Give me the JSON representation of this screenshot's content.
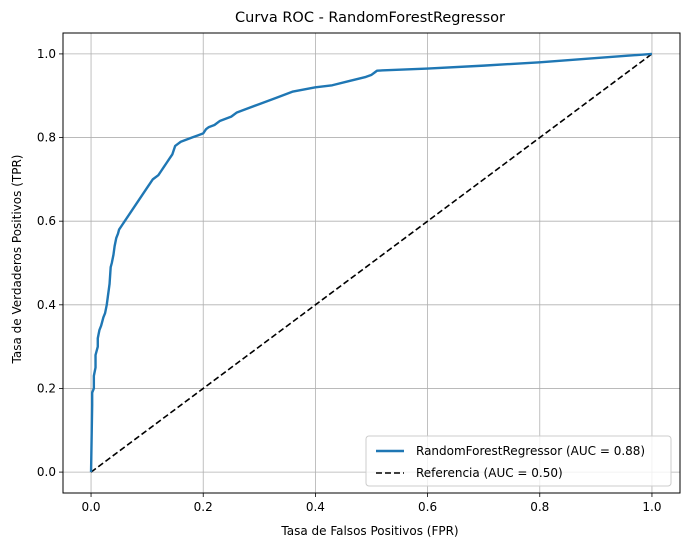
{
  "chart_data": {
    "type": "line",
    "title": "Curva ROC - RandomForestRegressor",
    "xlabel": "Tasa de Falsos Positivos (FPR)",
    "ylabel": "Tasa de Verdaderos Positivos (TPR)",
    "xlim": [
      -0.05,
      1.05
    ],
    "ylim": [
      -0.05,
      1.05
    ],
    "x_ticks": [
      "0.0",
      "0.2",
      "0.4",
      "0.6",
      "0.8",
      "1.0"
    ],
    "y_ticks": [
      "0.0",
      "0.2",
      "0.4",
      "0.6",
      "0.8",
      "1.0"
    ],
    "grid": true,
    "legend_position": "lower-right",
    "series": [
      {
        "name": "RandomForestRegressor (AUC = 0.88)",
        "color": "#1f77b4",
        "style": "solid",
        "x": [
          0.0,
          0.002,
          0.002,
          0.005,
          0.005,
          0.008,
          0.008,
          0.012,
          0.012,
          0.015,
          0.018,
          0.02,
          0.022,
          0.025,
          0.028,
          0.03,
          0.033,
          0.035,
          0.037,
          0.04,
          0.042,
          0.045,
          0.048,
          0.05,
          0.055,
          0.06,
          0.07,
          0.08,
          0.09,
          0.1,
          0.105,
          0.11,
          0.12,
          0.125,
          0.13,
          0.135,
          0.14,
          0.145,
          0.15,
          0.155,
          0.16,
          0.17,
          0.18,
          0.19,
          0.2,
          0.205,
          0.21,
          0.22,
          0.23,
          0.24,
          0.25,
          0.26,
          0.27,
          0.3,
          0.33,
          0.36,
          0.38,
          0.4,
          0.43,
          0.46,
          0.49,
          0.5,
          0.505,
          0.51,
          0.6,
          0.7,
          0.8,
          0.9,
          1.0
        ],
        "y": [
          0.0,
          0.16,
          0.19,
          0.2,
          0.23,
          0.25,
          0.28,
          0.3,
          0.32,
          0.34,
          0.35,
          0.36,
          0.37,
          0.38,
          0.4,
          0.42,
          0.45,
          0.49,
          0.5,
          0.52,
          0.54,
          0.56,
          0.57,
          0.58,
          0.59,
          0.6,
          0.62,
          0.64,
          0.66,
          0.68,
          0.69,
          0.7,
          0.71,
          0.72,
          0.73,
          0.74,
          0.75,
          0.76,
          0.78,
          0.785,
          0.79,
          0.795,
          0.8,
          0.805,
          0.81,
          0.82,
          0.825,
          0.83,
          0.84,
          0.845,
          0.85,
          0.86,
          0.865,
          0.88,
          0.895,
          0.91,
          0.915,
          0.92,
          0.925,
          0.935,
          0.945,
          0.95,
          0.955,
          0.96,
          0.965,
          0.972,
          0.98,
          0.99,
          1.0
        ]
      },
      {
        "name": "Referencia (AUC = 0.50)",
        "color": "#000000",
        "style": "dashed",
        "x": [
          0.0,
          1.0
        ],
        "y": [
          0.0,
          1.0
        ]
      }
    ]
  }
}
